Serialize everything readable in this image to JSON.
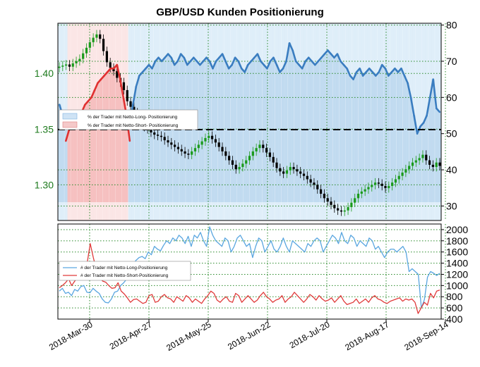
{
  "chart_data": {
    "title": "GBP/USD Kunden Positionierung",
    "x_labels": [
      "2018-Mar-30",
      "2018-Apr-27",
      "2018-May-25",
      "2018-Jun-22",
      "2018-Jul-20",
      "2018-Aug-17",
      "2018-Sep-14"
    ],
    "colors": {
      "long": "#3a7dc0",
      "short": "#e03030",
      "long_light": "#5aa6e0",
      "short_light": "#e03a3a",
      "bull": "#1a9a1a",
      "bear": "#000000",
      "axis_green": "#1d7a1d",
      "grid": "#2a8a2a"
    },
    "upper": {
      "type": "line",
      "left_axis": {
        "ticks": [
          "1.40",
          "1.35",
          "1.30"
        ],
        "values": [
          1.4,
          1.35,
          1.3
        ],
        "range": [
          1.268,
          1.445
        ]
      },
      "right_axis": {
        "ticks": [
          "80",
          "70",
          "60",
          "50",
          "40",
          "30"
        ],
        "values": [
          80,
          70,
          60,
          50,
          40,
          30
        ],
        "range": [
          26,
          80.5
        ]
      },
      "reference_line": 50,
      "legend": [
        {
          "label": "% der Trader  mit  Netto-Long-  Positionierung"
        },
        {
          "label": "% der Trader  mit  Netto-Short-  Positionierung"
        }
      ],
      "series": {
        "net_long_pct": [
          58,
          55,
          52,
          49,
          47,
          46,
          45,
          44,
          42,
          41,
          40,
          38,
          36,
          35,
          34,
          33,
          32,
          32,
          31,
          35,
          40,
          45,
          52,
          58,
          63,
          66,
          67,
          68,
          69,
          68,
          70,
          71,
          70,
          71,
          72,
          71,
          69,
          70,
          72,
          71,
          69,
          70,
          71,
          70,
          69,
          70,
          71,
          70,
          68,
          70,
          71,
          72,
          70,
          68,
          69,
          71,
          70,
          68,
          67,
          69,
          70,
          71,
          72,
          70,
          69,
          68,
          70,
          71,
          69,
          67,
          68,
          70,
          75,
          73,
          70,
          69,
          68,
          70,
          71,
          70,
          69,
          70,
          71,
          72,
          73,
          72,
          71,
          72,
          70,
          69,
          68,
          66,
          65,
          67,
          68,
          66,
          67,
          68,
          67,
          66,
          67,
          69,
          68,
          66,
          67,
          68,
          67,
          68,
          66,
          64,
          60,
          55,
          50,
          52,
          53,
          55,
          60,
          65,
          57,
          56
        ]
      },
      "price": [
        1.406,
        1.407,
        1.408,
        1.406,
        1.409,
        1.411,
        1.413,
        1.418,
        1.423,
        1.428,
        1.432,
        1.435,
        1.431,
        1.42,
        1.41,
        1.405,
        1.402,
        1.396,
        1.392,
        1.385,
        1.375,
        1.37,
        1.365,
        1.358,
        1.355,
        1.352,
        1.35,
        1.347,
        1.345,
        1.344,
        1.343,
        1.34,
        1.338,
        1.336,
        1.334,
        1.332,
        1.33,
        1.328,
        1.327,
        1.33,
        1.333,
        1.336,
        1.339,
        1.342,
        1.344,
        1.341,
        1.338,
        1.334,
        1.33,
        1.326,
        1.322,
        1.318,
        1.314,
        1.316,
        1.319,
        1.322,
        1.326,
        1.33,
        1.333,
        1.336,
        1.333,
        1.329,
        1.325,
        1.32,
        1.315,
        1.312,
        1.31,
        1.313,
        1.316,
        1.314,
        1.312,
        1.31,
        1.308,
        1.305,
        1.302,
        1.3,
        1.296,
        1.292,
        1.288,
        1.285,
        1.282,
        1.279,
        1.277,
        1.276,
        1.277,
        1.28,
        1.284,
        1.288,
        1.292,
        1.294,
        1.296,
        1.298,
        1.3,
        1.302,
        1.301,
        1.299,
        1.297,
        1.299,
        1.302,
        1.305,
        1.308,
        1.311,
        1.314,
        1.317,
        1.32,
        1.322,
        1.324,
        1.327,
        1.322,
        1.318,
        1.316,
        1.32,
        1.317
      ],
      "net_short_pct": [
        42,
        45,
        48,
        51,
        53,
        54,
        55,
        56,
        58,
        59,
        60,
        62,
        64,
        65,
        66,
        67,
        68,
        68,
        69,
        65,
        60,
        55,
        48,
        42,
        37,
        34,
        33,
        32,
        31,
        32,
        30,
        29,
        30,
        29,
        28,
        29,
        31,
        30,
        28,
        29,
        31,
        30,
        29,
        30,
        31,
        30,
        29,
        30,
        32,
        30,
        29,
        28,
        30,
        32,
        31,
        29,
        30,
        32,
        33,
        31,
        30,
        29,
        28,
        30,
        31,
        32,
        30,
        29,
        31,
        33,
        32,
        30,
        25,
        27,
        30,
        31,
        32,
        30,
        29,
        30,
        31,
        30,
        29,
        28,
        27,
        28,
        29,
        28,
        30,
        31,
        32,
        34,
        35,
        33,
        32,
        34,
        33,
        32,
        33,
        34,
        33,
        31,
        32,
        34,
        33,
        32,
        33,
        32,
        34,
        36,
        40,
        45,
        50,
        48,
        47,
        45,
        40,
        35,
        43,
        44
      ]
    },
    "lower": {
      "type": "line",
      "right_axis": {
        "ticks": [
          "2000",
          "1800",
          "1600",
          "1400",
          "1200",
          "1000",
          "800",
          "600",
          "400"
        ],
        "values": [
          2000,
          1800,
          1600,
          1400,
          1200,
          1000,
          800,
          600,
          400
        ],
        "range": [
          400,
          2100
        ]
      },
      "legend": [
        {
          "label": "# der Trader  mit  Netto-Long-Positionierung"
        },
        {
          "label": "# der Trader  mit  Netto-Short-Positionierung"
        }
      ],
      "series": {
        "net_long_count": [
          900,
          950,
          860,
          880,
          820,
          930,
          900,
          980,
          1000,
          880,
          870,
          950,
          900,
          860,
          760,
          700,
          690,
          760,
          880,
          900,
          1000,
          1050,
          1120,
          1300,
          1380,
          1450,
          1500,
          1520,
          1480,
          1600,
          1550,
          1700,
          1650,
          1620,
          1720,
          1800,
          1750,
          1850,
          1800,
          1900,
          1850,
          1750,
          1880,
          1700,
          1900,
          1850,
          1950,
          1800,
          1700,
          2050,
          1900,
          1800,
          1750,
          1700,
          1850,
          1800,
          1600,
          1700,
          1850,
          1900,
          1800,
          1700,
          1750,
          1500,
          1700,
          1850,
          1800,
          1600,
          1700,
          1800,
          1650,
          1600,
          1700,
          1850,
          1700,
          1600,
          1800,
          1750,
          1700,
          1650,
          1600,
          1750,
          1700,
          1800,
          1850,
          1800,
          1600,
          1700,
          1800,
          1900,
          1850,
          1750,
          1950,
          1800,
          1750,
          1900,
          1850,
          1700,
          1800,
          1750,
          1700,
          1850,
          1800,
          1650,
          1700,
          1600,
          1500,
          1600,
          1650,
          1650,
          1600,
          1650,
          1700,
          1600,
          1250,
          1300,
          1250,
          1200,
          600,
          750,
          1150,
          1250,
          1220,
          1180,
          1220
        ]
      },
      "net_short_count": [
        960,
        1000,
        1050,
        1120,
        1000,
        1080,
        1150,
        1220,
        1300,
        1400,
        1750,
        1500,
        1280,
        1150,
        1080,
        1060,
        1000,
        950,
        960,
        1050,
        900,
        850,
        780,
        700,
        750,
        760,
        720,
        680,
        700,
        820,
        840,
        700,
        720,
        800,
        840,
        780,
        760,
        700,
        800,
        760,
        720,
        820,
        780,
        700,
        760,
        720,
        680,
        760,
        820,
        900,
        860,
        740,
        700,
        760,
        800,
        720,
        700,
        860,
        820,
        700,
        760,
        820,
        760,
        700,
        740,
        820,
        880,
        800,
        760,
        700,
        740,
        760,
        820,
        700,
        760,
        800,
        880,
        820,
        760,
        700,
        760,
        840,
        800,
        740,
        820,
        760,
        720,
        740,
        780,
        700,
        760,
        820,
        720,
        660,
        680,
        700,
        760,
        680,
        720,
        760,
        700,
        780,
        820,
        760,
        740,
        700,
        680,
        720,
        740,
        760,
        780,
        720,
        760,
        740,
        760,
        700,
        500,
        600,
        700,
        650,
        860,
        780,
        900,
        920
      ]
    }
  }
}
